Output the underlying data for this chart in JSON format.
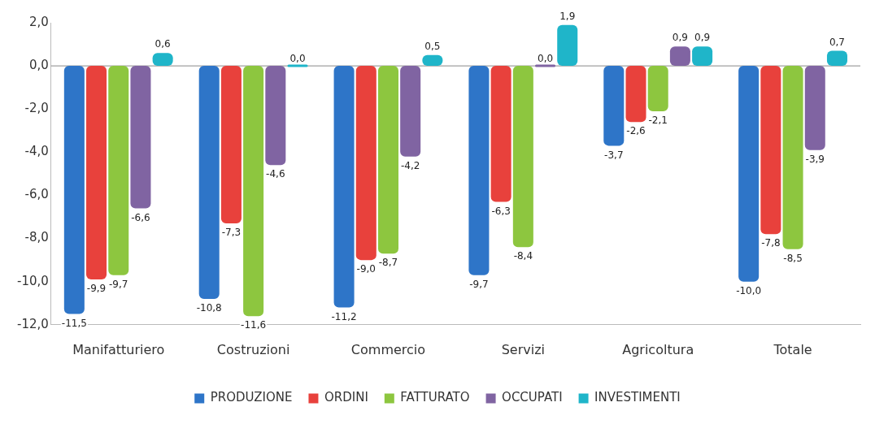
{
  "chart_data": {
    "type": "bar",
    "categories": [
      "Manifatturiero",
      "Costruzioni",
      "Commercio",
      "Servizi",
      "Agricoltura",
      "Totale"
    ],
    "series": [
      {
        "name": "PRODUZIONE",
        "color": "#2e75c8",
        "values": [
          -11.5,
          -10.8,
          -11.2,
          -9.7,
          -3.7,
          -10.0
        ],
        "value_labels": [
          "-11,5",
          "-10,8",
          "-11,2",
          "-9,7",
          "-3,7",
          "-10,0"
        ]
      },
      {
        "name": "ORDINI",
        "color": "#e8413c",
        "values": [
          -9.9,
          -7.3,
          -9.0,
          -6.3,
          -2.6,
          -7.8
        ],
        "value_labels": [
          "-9,9",
          "-7,3",
          "-9,0",
          "-6,3",
          "-2,6",
          "-7,8"
        ]
      },
      {
        "name": "FATTURATO",
        "color": "#8dc63f",
        "values": [
          -9.7,
          -11.6,
          -8.7,
          -8.4,
          -2.1,
          -8.5
        ],
        "value_labels": [
          "-9,7",
          "-11,6",
          "-8,7",
          "-8,4",
          "-2,1",
          "-8,5"
        ]
      },
      {
        "name": "OCCUPATI",
        "color": "#8064a2",
        "values": [
          -6.6,
          -4.6,
          -4.2,
          0.0,
          0.9,
          -3.9
        ],
        "value_labels": [
          "-6,6",
          "-4,6",
          "-4,2",
          "0,0",
          "0,9",
          "-3,9"
        ]
      },
      {
        "name": "INVESTIMENTI",
        "color": "#1fb5c9",
        "values": [
          0.6,
          0.0,
          0.5,
          1.9,
          0.9,
          0.7
        ],
        "value_labels": [
          "0,6",
          "0,0",
          "0,5",
          "1,9",
          "0,9",
          "0,7"
        ]
      }
    ],
    "ylim": [
      -12,
      2
    ],
    "yticks": [
      {
        "value": -12,
        "label": "-12,0"
      },
      {
        "value": -10,
        "label": "-10,0"
      },
      {
        "value": -8,
        "label": "-8,0"
      },
      {
        "value": -6,
        "label": "-6,0"
      },
      {
        "value": -4,
        "label": "-4,0"
      },
      {
        "value": -2,
        "label": "-2,0"
      },
      {
        "value": 0,
        "label": "0,0"
      },
      {
        "value": 2,
        "label": "2,0"
      }
    ],
    "ref_lines": [
      {
        "axis": "y",
        "value": 0,
        "color": "#888888"
      }
    ],
    "grid": false,
    "legend": "bottom"
  }
}
